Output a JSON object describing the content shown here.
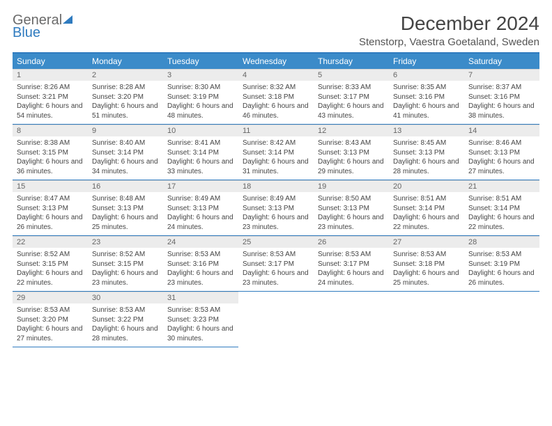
{
  "logo": {
    "line1": "General",
    "line2": "Blue"
  },
  "title": "December 2024",
  "location": "Stenstorp, Vaestra Goetaland, Sweden",
  "colors": {
    "header_bg": "#3b8bc9",
    "accent": "#2f7bbf",
    "daynum_bg": "#ececec",
    "text": "#444444"
  },
  "weekdays": [
    "Sunday",
    "Monday",
    "Tuesday",
    "Wednesday",
    "Thursday",
    "Friday",
    "Saturday"
  ],
  "days": [
    {
      "n": 1,
      "sunrise": "8:26 AM",
      "sunset": "3:21 PM",
      "daylight": "6 hours and 54 minutes."
    },
    {
      "n": 2,
      "sunrise": "8:28 AM",
      "sunset": "3:20 PM",
      "daylight": "6 hours and 51 minutes."
    },
    {
      "n": 3,
      "sunrise": "8:30 AM",
      "sunset": "3:19 PM",
      "daylight": "6 hours and 48 minutes."
    },
    {
      "n": 4,
      "sunrise": "8:32 AM",
      "sunset": "3:18 PM",
      "daylight": "6 hours and 46 minutes."
    },
    {
      "n": 5,
      "sunrise": "8:33 AM",
      "sunset": "3:17 PM",
      "daylight": "6 hours and 43 minutes."
    },
    {
      "n": 6,
      "sunrise": "8:35 AM",
      "sunset": "3:16 PM",
      "daylight": "6 hours and 41 minutes."
    },
    {
      "n": 7,
      "sunrise": "8:37 AM",
      "sunset": "3:16 PM",
      "daylight": "6 hours and 38 minutes."
    },
    {
      "n": 8,
      "sunrise": "8:38 AM",
      "sunset": "3:15 PM",
      "daylight": "6 hours and 36 minutes."
    },
    {
      "n": 9,
      "sunrise": "8:40 AM",
      "sunset": "3:14 PM",
      "daylight": "6 hours and 34 minutes."
    },
    {
      "n": 10,
      "sunrise": "8:41 AM",
      "sunset": "3:14 PM",
      "daylight": "6 hours and 33 minutes."
    },
    {
      "n": 11,
      "sunrise": "8:42 AM",
      "sunset": "3:14 PM",
      "daylight": "6 hours and 31 minutes."
    },
    {
      "n": 12,
      "sunrise": "8:43 AM",
      "sunset": "3:13 PM",
      "daylight": "6 hours and 29 minutes."
    },
    {
      "n": 13,
      "sunrise": "8:45 AM",
      "sunset": "3:13 PM",
      "daylight": "6 hours and 28 minutes."
    },
    {
      "n": 14,
      "sunrise": "8:46 AM",
      "sunset": "3:13 PM",
      "daylight": "6 hours and 27 minutes."
    },
    {
      "n": 15,
      "sunrise": "8:47 AM",
      "sunset": "3:13 PM",
      "daylight": "6 hours and 26 minutes."
    },
    {
      "n": 16,
      "sunrise": "8:48 AM",
      "sunset": "3:13 PM",
      "daylight": "6 hours and 25 minutes."
    },
    {
      "n": 17,
      "sunrise": "8:49 AM",
      "sunset": "3:13 PM",
      "daylight": "6 hours and 24 minutes."
    },
    {
      "n": 18,
      "sunrise": "8:49 AM",
      "sunset": "3:13 PM",
      "daylight": "6 hours and 23 minutes."
    },
    {
      "n": 19,
      "sunrise": "8:50 AM",
      "sunset": "3:13 PM",
      "daylight": "6 hours and 23 minutes."
    },
    {
      "n": 20,
      "sunrise": "8:51 AM",
      "sunset": "3:14 PM",
      "daylight": "6 hours and 22 minutes."
    },
    {
      "n": 21,
      "sunrise": "8:51 AM",
      "sunset": "3:14 PM",
      "daylight": "6 hours and 22 minutes."
    },
    {
      "n": 22,
      "sunrise": "8:52 AM",
      "sunset": "3:15 PM",
      "daylight": "6 hours and 22 minutes."
    },
    {
      "n": 23,
      "sunrise": "8:52 AM",
      "sunset": "3:15 PM",
      "daylight": "6 hours and 23 minutes."
    },
    {
      "n": 24,
      "sunrise": "8:53 AM",
      "sunset": "3:16 PM",
      "daylight": "6 hours and 23 minutes."
    },
    {
      "n": 25,
      "sunrise": "8:53 AM",
      "sunset": "3:17 PM",
      "daylight": "6 hours and 23 minutes."
    },
    {
      "n": 26,
      "sunrise": "8:53 AM",
      "sunset": "3:17 PM",
      "daylight": "6 hours and 24 minutes."
    },
    {
      "n": 27,
      "sunrise": "8:53 AM",
      "sunset": "3:18 PM",
      "daylight": "6 hours and 25 minutes."
    },
    {
      "n": 28,
      "sunrise": "8:53 AM",
      "sunset": "3:19 PM",
      "daylight": "6 hours and 26 minutes."
    },
    {
      "n": 29,
      "sunrise": "8:53 AM",
      "sunset": "3:20 PM",
      "daylight": "6 hours and 27 minutes."
    },
    {
      "n": 30,
      "sunrise": "8:53 AM",
      "sunset": "3:22 PM",
      "daylight": "6 hours and 28 minutes."
    },
    {
      "n": 31,
      "sunrise": "8:53 AM",
      "sunset": "3:23 PM",
      "daylight": "6 hours and 30 minutes."
    }
  ],
  "labels": {
    "sunrise_prefix": "Sunrise: ",
    "sunset_prefix": "Sunset: ",
    "daylight_prefix": "Daylight: "
  },
  "layout": {
    "first_day_column": 0,
    "rows": 5,
    "cols": 7
  }
}
